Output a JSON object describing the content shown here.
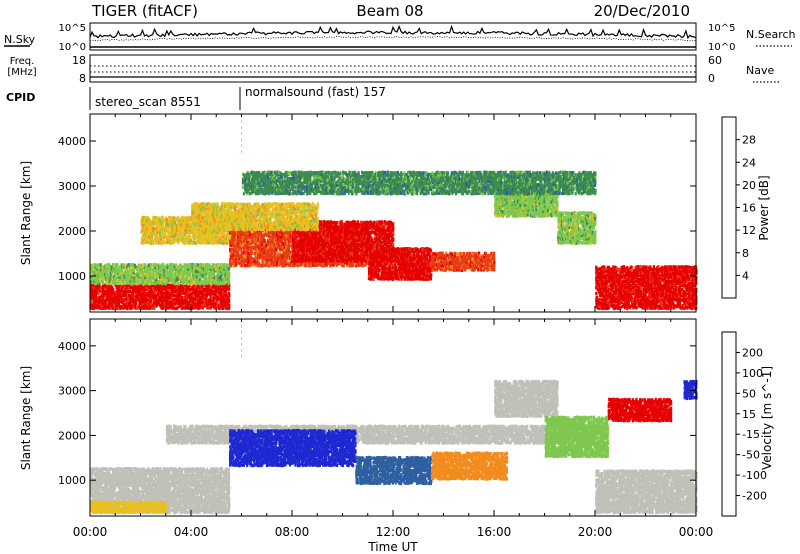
{
  "header": {
    "radar": "TIGER (fitACF)",
    "beam": "Beam 08",
    "date": "20/Dec/2010"
  },
  "top_panels": {
    "nsky_label": "N.Sky",
    "nsearch_label": "N.Search",
    "noise_ticks_left": [
      "10^5",
      "10^0"
    ],
    "noise_ticks_right": [
      "10^5",
      "10^0"
    ],
    "freq_label_line1": "Freq.",
    "freq_label_line2": "[MHz]",
    "freq_ticks": [
      "18",
      "8"
    ],
    "nave_label": "Nave",
    "nave_ticks": [
      "60",
      "0"
    ],
    "cpid_label": "CPID",
    "cpid_segments": [
      {
        "name": "stereo_scan 8551",
        "start_hour": 0
      },
      {
        "name": "normalsound (fast) 157",
        "start_hour": 6
      }
    ]
  },
  "chart_data": [
    {
      "type": "heatmap",
      "title": "",
      "ylabel": "Slant Range [km]",
      "ylim": [
        200,
        4600
      ],
      "yticks": [
        1000,
        2000,
        3000,
        4000
      ],
      "xlim": [
        0,
        24
      ],
      "colorbar": {
        "label": "Power [dB]",
        "ticks": [
          "4",
          "8",
          "12",
          "16",
          "20",
          "24",
          "28"
        ],
        "colors": [
          "#1414e6",
          "#2e5fa0",
          "#3c8c4f",
          "#7ec850",
          "#e8c020",
          "#f08c1e",
          "#e83c14",
          "#e60000"
        ]
      },
      "scatter_bands": [
        {
          "t0": 0.0,
          "t1": 5.5,
          "r0": 250,
          "r1": 800,
          "level": 28
        },
        {
          "t0": 0.0,
          "t1": 5.5,
          "r0": 800,
          "r1": 1250,
          "level": 12
        },
        {
          "t0": 2.0,
          "t1": 6.5,
          "r0": 1700,
          "r1": 2300,
          "level": 14
        },
        {
          "t0": 5.5,
          "t1": 11.0,
          "r0": 1200,
          "r1": 2100,
          "level": 24
        },
        {
          "t0": 8.0,
          "t1": 12.0,
          "r0": 1300,
          "r1": 2200,
          "level": 28
        },
        {
          "t0": 11.0,
          "t1": 13.5,
          "r0": 900,
          "r1": 1600,
          "level": 28
        },
        {
          "t0": 13.5,
          "t1": 16.0,
          "r0": 1100,
          "r1": 1500,
          "level": 24
        },
        {
          "t0": 16.0,
          "t1": 18.5,
          "r0": 2300,
          "r1": 3000,
          "level": 10
        },
        {
          "t0": 18.5,
          "t1": 20.0,
          "r0": 1700,
          "r1": 2400,
          "level": 12
        },
        {
          "t0": 20.0,
          "t1": 24.0,
          "r0": 250,
          "r1": 1200,
          "level": 28
        },
        {
          "t0": 6.0,
          "t1": 20.0,
          "r0": 2800,
          "r1": 3300,
          "level": 6
        },
        {
          "t0": 4.0,
          "t1": 9.0,
          "r0": 2000,
          "r1": 2600,
          "level": 16
        }
      ]
    },
    {
      "type": "heatmap",
      "title": "",
      "ylabel": "Slant Range [km]",
      "xlabel": "Time UT",
      "xticks": [
        "00:00",
        "04:00",
        "08:00",
        "12:00",
        "16:00",
        "20:00",
        "00:00"
      ],
      "ylim": [
        200,
        4600
      ],
      "yticks": [
        1000,
        2000,
        3000,
        4000
      ],
      "xlim": [
        0,
        24
      ],
      "colorbar": {
        "label": "Velocity [m s^-1]",
        "ticks": [
          "200",
          "100",
          "50",
          "15",
          "-15",
          "-50",
          "-100",
          "-200"
        ],
        "colors": [
          "#1e28d2",
          "#2e5fa0",
          "#3c8c4f",
          "#7ec850",
          "#c0c0b8",
          "#e8c020",
          "#f08c1e",
          "#e83c14",
          "#e60000"
        ]
      },
      "scatter_bands": [
        {
          "t0": 0.0,
          "t1": 5.5,
          "r0": 250,
          "r1": 1250,
          "class": "ground"
        },
        {
          "t0": 0.0,
          "t1": 3.0,
          "r0": 250,
          "r1": 500,
          "class": "neg50"
        },
        {
          "t0": 3.0,
          "t1": 20.0,
          "r0": 1800,
          "r1": 2200,
          "class": "ground"
        },
        {
          "t0": 5.5,
          "t1": 10.5,
          "r0": 1300,
          "r1": 2100,
          "class": "pos200"
        },
        {
          "t0": 10.5,
          "t1": 13.5,
          "r0": 900,
          "r1": 1500,
          "class": "pos100"
        },
        {
          "t0": 13.5,
          "t1": 16.5,
          "r0": 1000,
          "r1": 1600,
          "class": "neg100"
        },
        {
          "t0": 16.0,
          "t1": 18.5,
          "r0": 2400,
          "r1": 3200,
          "class": "ground"
        },
        {
          "t0": 18.0,
          "t1": 20.5,
          "r0": 1500,
          "r1": 2400,
          "class": "pos50"
        },
        {
          "t0": 20.0,
          "t1": 24.0,
          "r0": 250,
          "r1": 1200,
          "class": "ground"
        },
        {
          "t0": 20.5,
          "t1": 23.0,
          "r0": 2300,
          "r1": 2800,
          "class": "neg200"
        },
        {
          "t0": 23.5,
          "t1": 24.0,
          "r0": 2800,
          "r1": 3200,
          "class": "pos200"
        }
      ]
    }
  ]
}
